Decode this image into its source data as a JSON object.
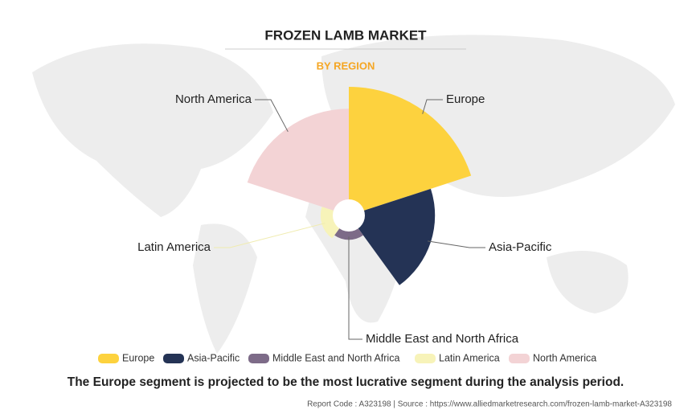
{
  "chart_data": {
    "type": "rose",
    "title": "FROZEN LAMB MARKET",
    "subtitle": "BY REGION",
    "categories": [
      "Europe",
      "Asia-Pacific",
      "Middle East and North Africa",
      "Latin America",
      "North America"
    ],
    "values": [
      100,
      67,
      19,
      22,
      83
    ],
    "colors": [
      "#fdd23e",
      "#243355",
      "#7d6b88",
      "#f7f3b9",
      "#f3d3d5"
    ],
    "legend": "bottom"
  },
  "footnote": "The Europe segment is projected to be the most lucrative segment during the analysis period.",
  "source": "Report Code : A323198  |  Source : https://www.alliedmarketresearch.com/frozen-lamb-market-A323198"
}
